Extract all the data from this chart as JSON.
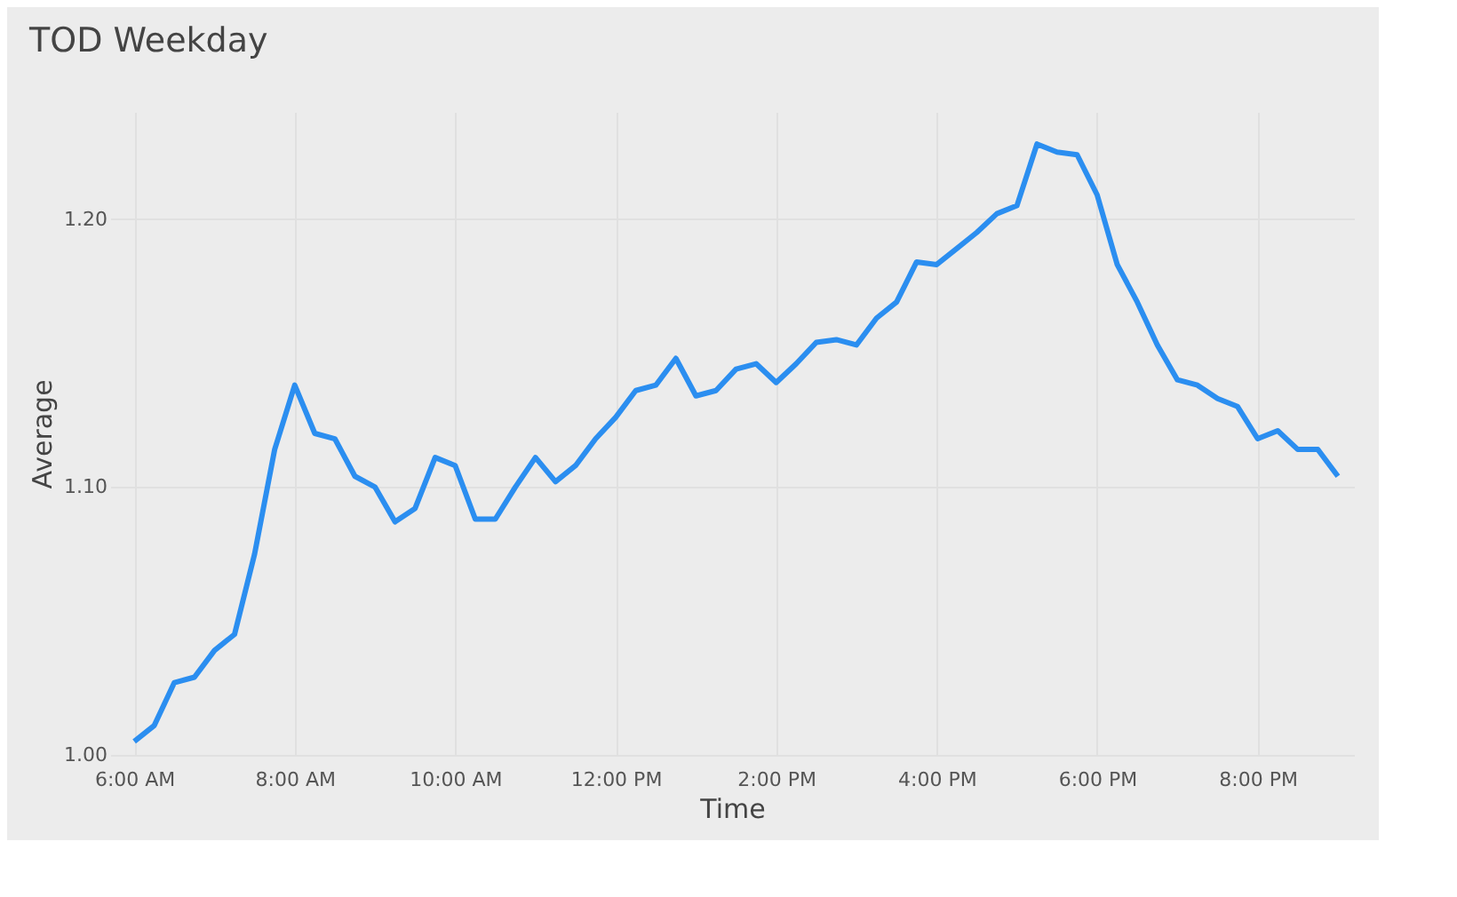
{
  "chart_data": {
    "type": "line",
    "title": "TOD Weekday",
    "xlabel": "Time",
    "ylabel": "Average",
    "x": [
      6,
      6.25,
      6.5,
      6.75,
      7,
      7.25,
      7.5,
      7.75,
      8,
      8.25,
      8.5,
      8.75,
      9,
      9.25,
      9.5,
      9.75,
      10,
      10.25,
      10.5,
      10.75,
      11,
      11.25,
      11.5,
      11.75,
      12,
      12.25,
      12.5,
      12.75,
      13,
      13.25,
      13.5,
      13.75,
      14,
      14.25,
      14.5,
      14.75,
      15,
      15.25,
      15.5,
      15.75,
      16,
      16.25,
      16.5,
      16.75,
      17,
      17.25,
      17.5,
      17.75,
      18,
      18.25,
      18.5,
      18.75,
      19,
      19.25,
      19.5,
      19.75,
      20,
      20.25,
      20.5,
      20.75,
      21
    ],
    "series": [
      {
        "color": "#2b8ef0",
        "values": [
          1.005,
          1.011,
          1.027,
          1.029,
          1.039,
          1.045,
          1.075,
          1.114,
          1.138,
          1.12,
          1.118,
          1.104,
          1.1,
          1.087,
          1.092,
          1.111,
          1.108,
          1.088,
          1.088,
          1.1,
          1.111,
          1.102,
          1.108,
          1.118,
          1.126,
          1.136,
          1.138,
          1.148,
          1.134,
          1.136,
          1.144,
          1.146,
          1.139,
          1.146,
          1.154,
          1.155,
          1.153,
          1.163,
          1.169,
          1.184,
          1.183,
          1.189,
          1.195,
          1.202,
          1.205,
          1.228,
          1.225,
          1.224,
          1.209,
          1.183,
          1.169,
          1.153,
          1.14,
          1.138,
          1.133,
          1.13,
          1.118,
          1.121,
          1.114,
          1.114,
          1.104
        ]
      }
    ],
    "xlim": [
      5.7,
      21.2
    ],
    "xticks": [
      {
        "value": 6,
        "label": "6:00 AM"
      },
      {
        "value": 8,
        "label": "8:00 AM"
      },
      {
        "value": 10,
        "label": "10:00 AM"
      },
      {
        "value": 12,
        "label": "12:00 PM"
      },
      {
        "value": 14,
        "label": "2:00 PM"
      },
      {
        "value": 16,
        "label": "4:00 PM"
      },
      {
        "value": 18,
        "label": "6:00 PM"
      },
      {
        "value": 20,
        "label": "8:00 PM"
      }
    ],
    "ylim": [
      1.0,
      1.24
    ],
    "yticks": [
      {
        "value": 1.0,
        "label": "1.00"
      },
      {
        "value": 1.1,
        "label": "1.10"
      },
      {
        "value": 1.2,
        "label": "1.20"
      }
    ],
    "grid": true,
    "line_style": "solid",
    "marker": "none"
  }
}
